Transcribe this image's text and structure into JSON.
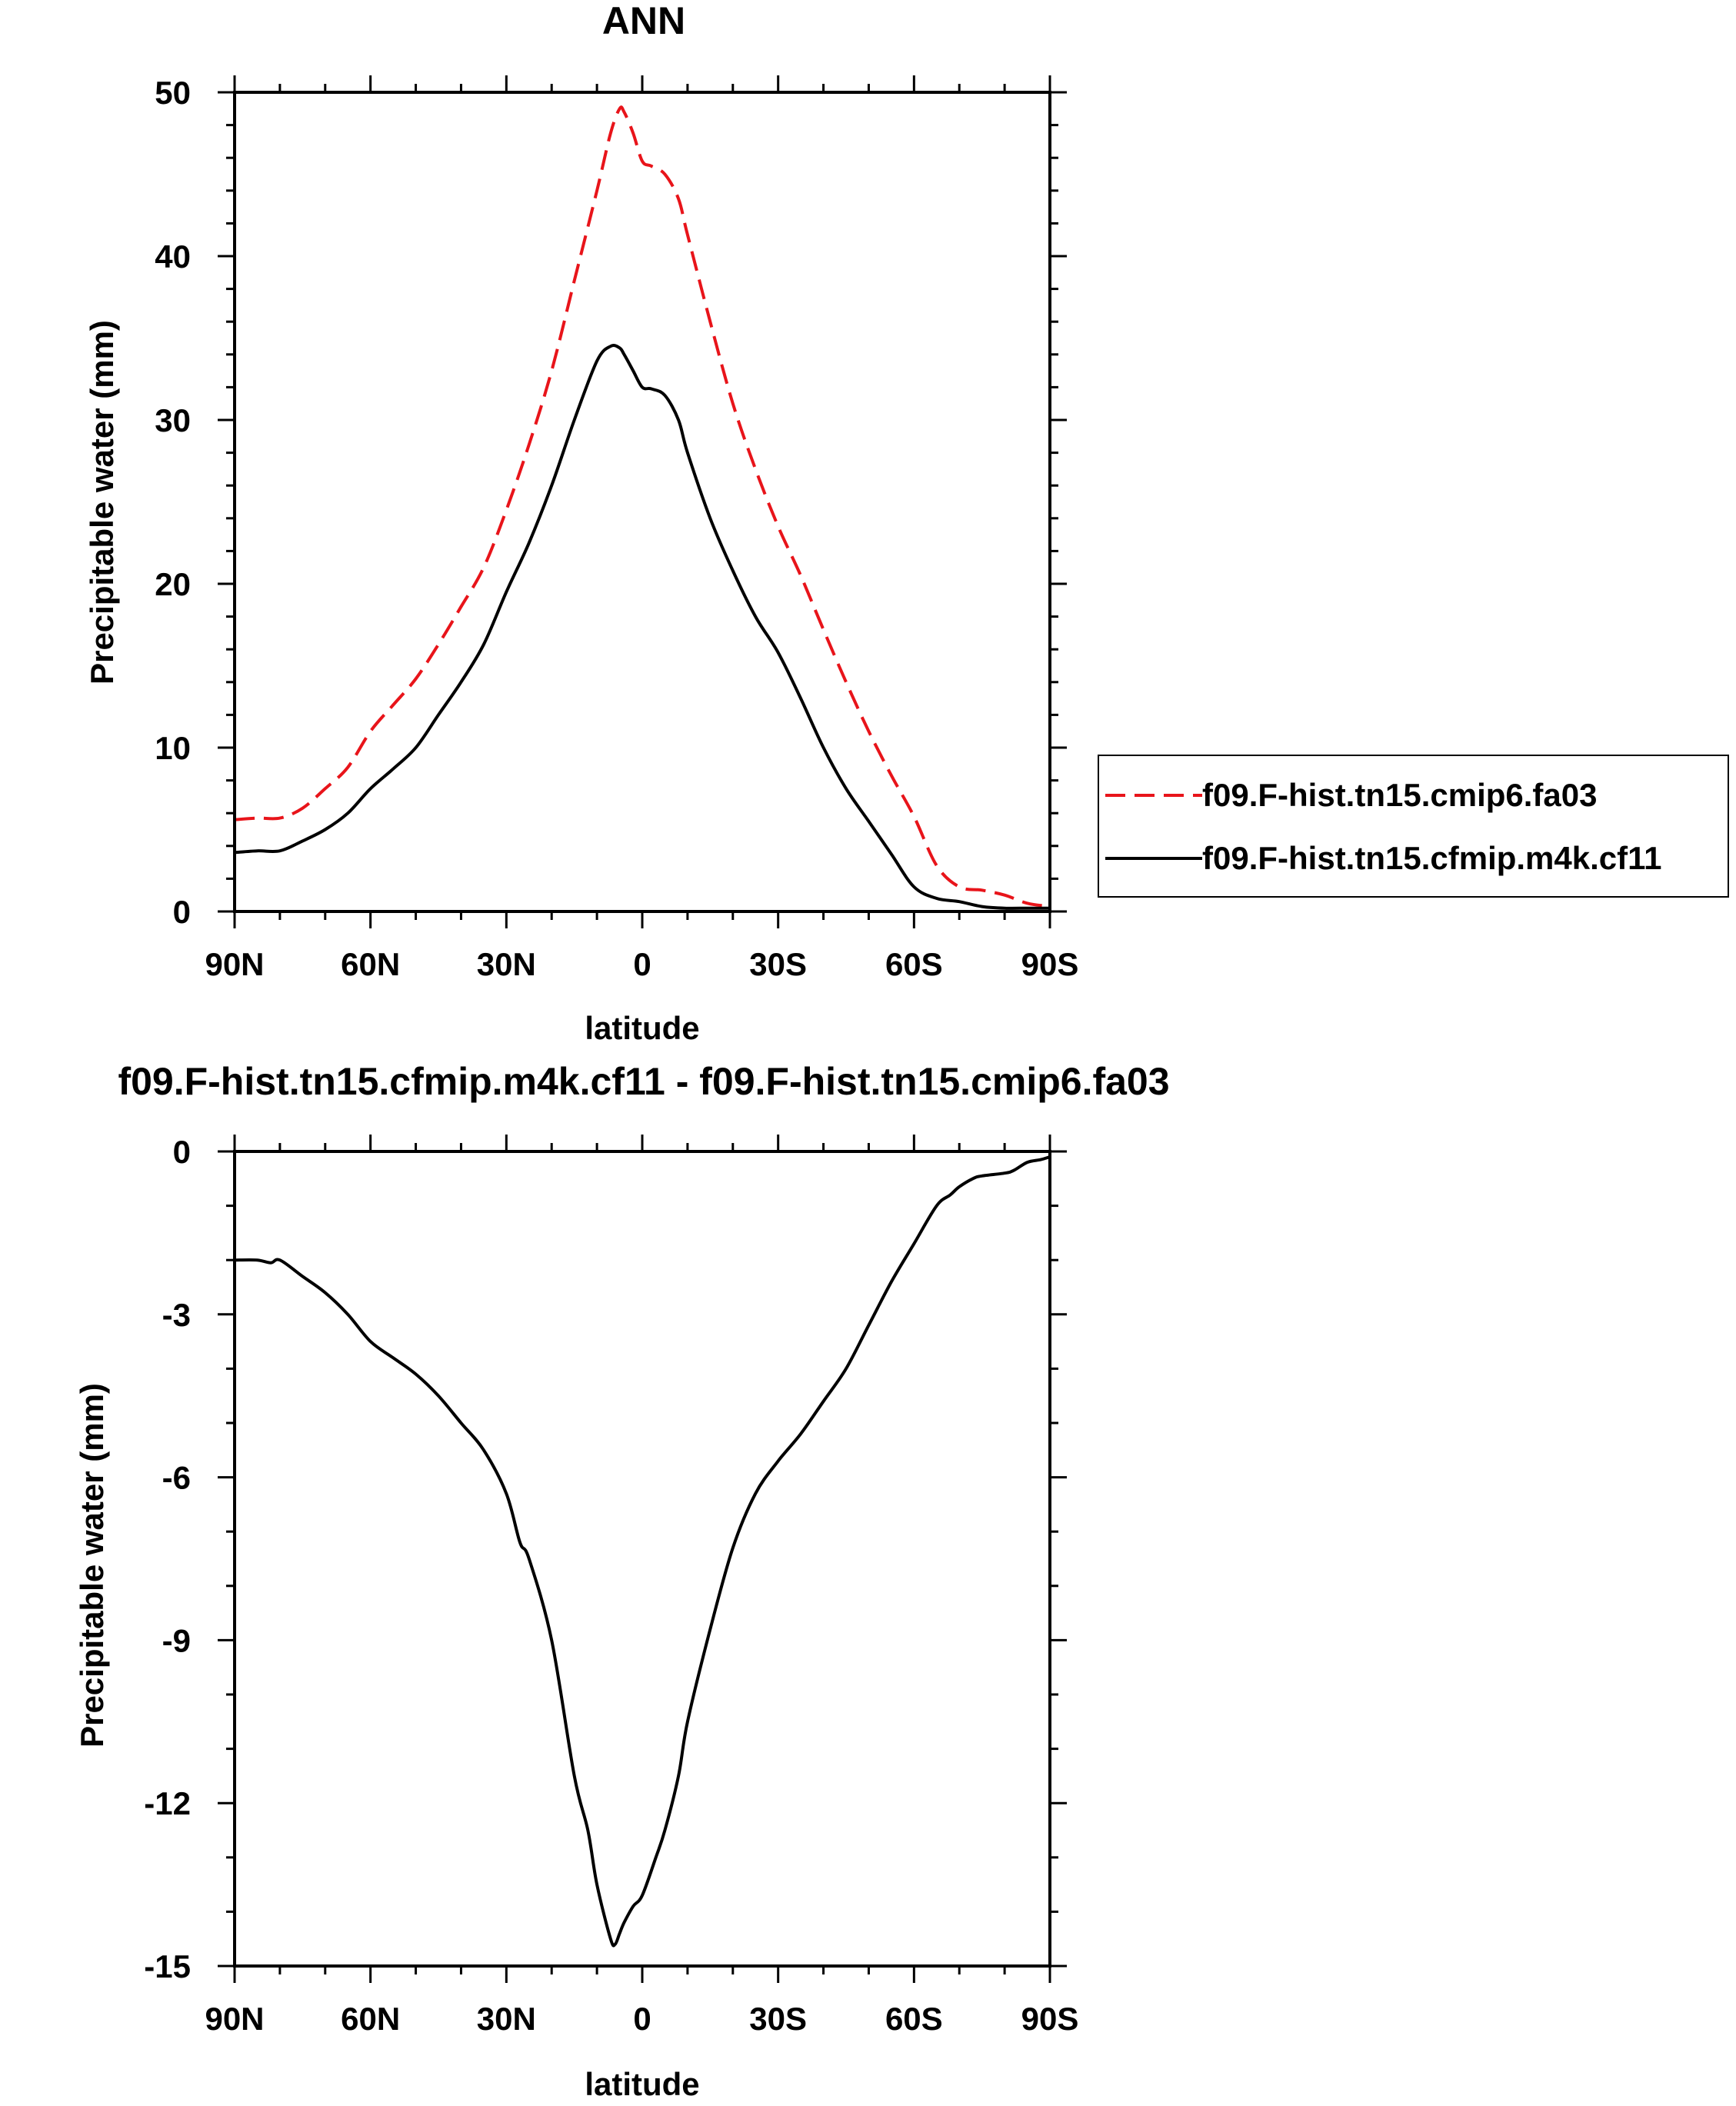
{
  "chart_data": [
    {
      "type": "line",
      "title": "ANN",
      "xlabel": "latitude",
      "ylabel": "Precipitable water (mm)",
      "xlim": [
        90,
        -90
      ],
      "ylim": [
        0,
        50
      ],
      "x_ticks": [
        {
          "value": 90,
          "label": "90N"
        },
        {
          "value": 60,
          "label": "60N"
        },
        {
          "value": 30,
          "label": "30N"
        },
        {
          "value": 0,
          "label": "0"
        },
        {
          "value": -30,
          "label": "30S"
        },
        {
          "value": -60,
          "label": "60S"
        },
        {
          "value": -90,
          "label": "90S"
        }
      ],
      "y_ticks": [
        {
          "value": 0,
          "label": "0"
        },
        {
          "value": 10,
          "label": "10"
        },
        {
          "value": 20,
          "label": "20"
        },
        {
          "value": 30,
          "label": "30"
        },
        {
          "value": 40,
          "label": "40"
        },
        {
          "value": 50,
          "label": "50"
        }
      ],
      "x_minor_step": 10,
      "y_minor_step": 2,
      "grid": false,
      "legend": "right",
      "series": [
        {
          "name": "f09.F-hist.tn15.cmip6.fa03",
          "color": "#e8141a",
          "dash": "dashed",
          "x": [
            90,
            85,
            80,
            75,
            70,
            65,
            60,
            55,
            50,
            45,
            40,
            35,
            30,
            25,
            20,
            15,
            10,
            7,
            5,
            4,
            2,
            0,
            -2,
            -5,
            -8,
            -10,
            -15,
            -20,
            -25,
            -30,
            -35,
            -40,
            -45,
            -50,
            -55,
            -60,
            -65,
            -70,
            -75,
            -80,
            -85,
            -90
          ],
          "y": [
            5.6,
            5.7,
            5.7,
            6.3,
            7.5,
            8.8,
            11,
            12.6,
            14.2,
            16.3,
            18.6,
            21,
            24.5,
            28.5,
            33,
            38.5,
            44,
            47.5,
            49,
            48.8,
            47.5,
            45.8,
            45.5,
            45,
            43.5,
            41.3,
            36,
            31,
            27,
            23.5,
            20.5,
            17.2,
            14,
            11,
            8.3,
            5.8,
            2.8,
            1.5,
            1.3,
            1.0,
            0.5,
            0.3
          ]
        },
        {
          "name": "f09.F-hist.tn15.cfmip.m4k.cf11",
          "color": "#000000",
          "dash": "solid",
          "x": [
            90,
            85,
            80,
            75,
            70,
            65,
            60,
            55,
            50,
            45,
            40,
            35,
            30,
            25,
            20,
            15,
            10,
            7,
            5,
            4,
            2,
            0,
            -2,
            -5,
            -8,
            -10,
            -15,
            -20,
            -25,
            -30,
            -35,
            -40,
            -45,
            -50,
            -55,
            -60,
            -65,
            -70,
            -75,
            -80,
            -85,
            -90
          ],
          "y": [
            3.6,
            3.7,
            3.7,
            4.3,
            5.0,
            6.0,
            7.5,
            8.7,
            10.0,
            12.0,
            14.0,
            16.3,
            19.5,
            22.5,
            26,
            30,
            33.6,
            34.5,
            34.4,
            34.0,
            33,
            32,
            31.9,
            31.5,
            30,
            28,
            24,
            20.8,
            18,
            15.8,
            13,
            10,
            7.5,
            5.5,
            3.5,
            1.5,
            0.8,
            0.6,
            0.3,
            0.2,
            0.2,
            0.2
          ]
        }
      ]
    },
    {
      "type": "line",
      "title": "f09.F-hist.tn15.cfmip.m4k.cf11 - f09.F-hist.tn15.cmip6.fa03",
      "xlabel": "latitude",
      "ylabel": "Precipitable water (mm)",
      "xlim": [
        90,
        -90
      ],
      "ylim": [
        -15,
        0
      ],
      "x_ticks": [
        {
          "value": 90,
          "label": "90N"
        },
        {
          "value": 60,
          "label": "60N"
        },
        {
          "value": 30,
          "label": "30N"
        },
        {
          "value": 0,
          "label": "0"
        },
        {
          "value": -30,
          "label": "30S"
        },
        {
          "value": -60,
          "label": "60S"
        },
        {
          "value": -90,
          "label": "90S"
        }
      ],
      "y_ticks": [
        {
          "value": 0,
          "label": "0"
        },
        {
          "value": -3,
          "label": "-3"
        },
        {
          "value": -6,
          "label": "-6"
        },
        {
          "value": -9,
          "label": "-9"
        },
        {
          "value": -12,
          "label": "-12"
        },
        {
          "value": -15,
          "label": "-15"
        }
      ],
      "x_minor_step": 10,
      "y_minor_step": 1,
      "grid": false,
      "series": [
        {
          "color": "#000000",
          "dash": "solid",
          "x": [
            90,
            85,
            82,
            80,
            75,
            70,
            65,
            60,
            55,
            50,
            45,
            40,
            35,
            30,
            27,
            25,
            20,
            15,
            12,
            10,
            7,
            6,
            5,
            4,
            2,
            0,
            -3,
            -5,
            -8,
            -10,
            -15,
            -20,
            -25,
            -30,
            -35,
            -40,
            -45,
            -50,
            -55,
            -60,
            -65,
            -68,
            -70,
            -73,
            -75,
            -80,
            -82,
            -85,
            -88,
            -90
          ],
          "y": [
            -2,
            -2,
            -2.05,
            -2,
            -2.3,
            -2.6,
            -3.0,
            -3.5,
            -3.8,
            -4.1,
            -4.5,
            -5.0,
            -5.5,
            -6.3,
            -7.2,
            -7.5,
            -9.0,
            -11.5,
            -12.5,
            -13.5,
            -14.5,
            -14.6,
            -14.4,
            -14.2,
            -13.9,
            -13.7,
            -13.0,
            -12.5,
            -11.5,
            -10.5,
            -8.8,
            -7.3,
            -6.3,
            -5.7,
            -5.2,
            -4.6,
            -4.0,
            -3.2,
            -2.4,
            -1.7,
            -1.0,
            -0.8,
            -0.65,
            -0.5,
            -0.45,
            -0.4,
            -0.35,
            -0.2,
            -0.15,
            -0.1
          ]
        }
      ]
    }
  ]
}
